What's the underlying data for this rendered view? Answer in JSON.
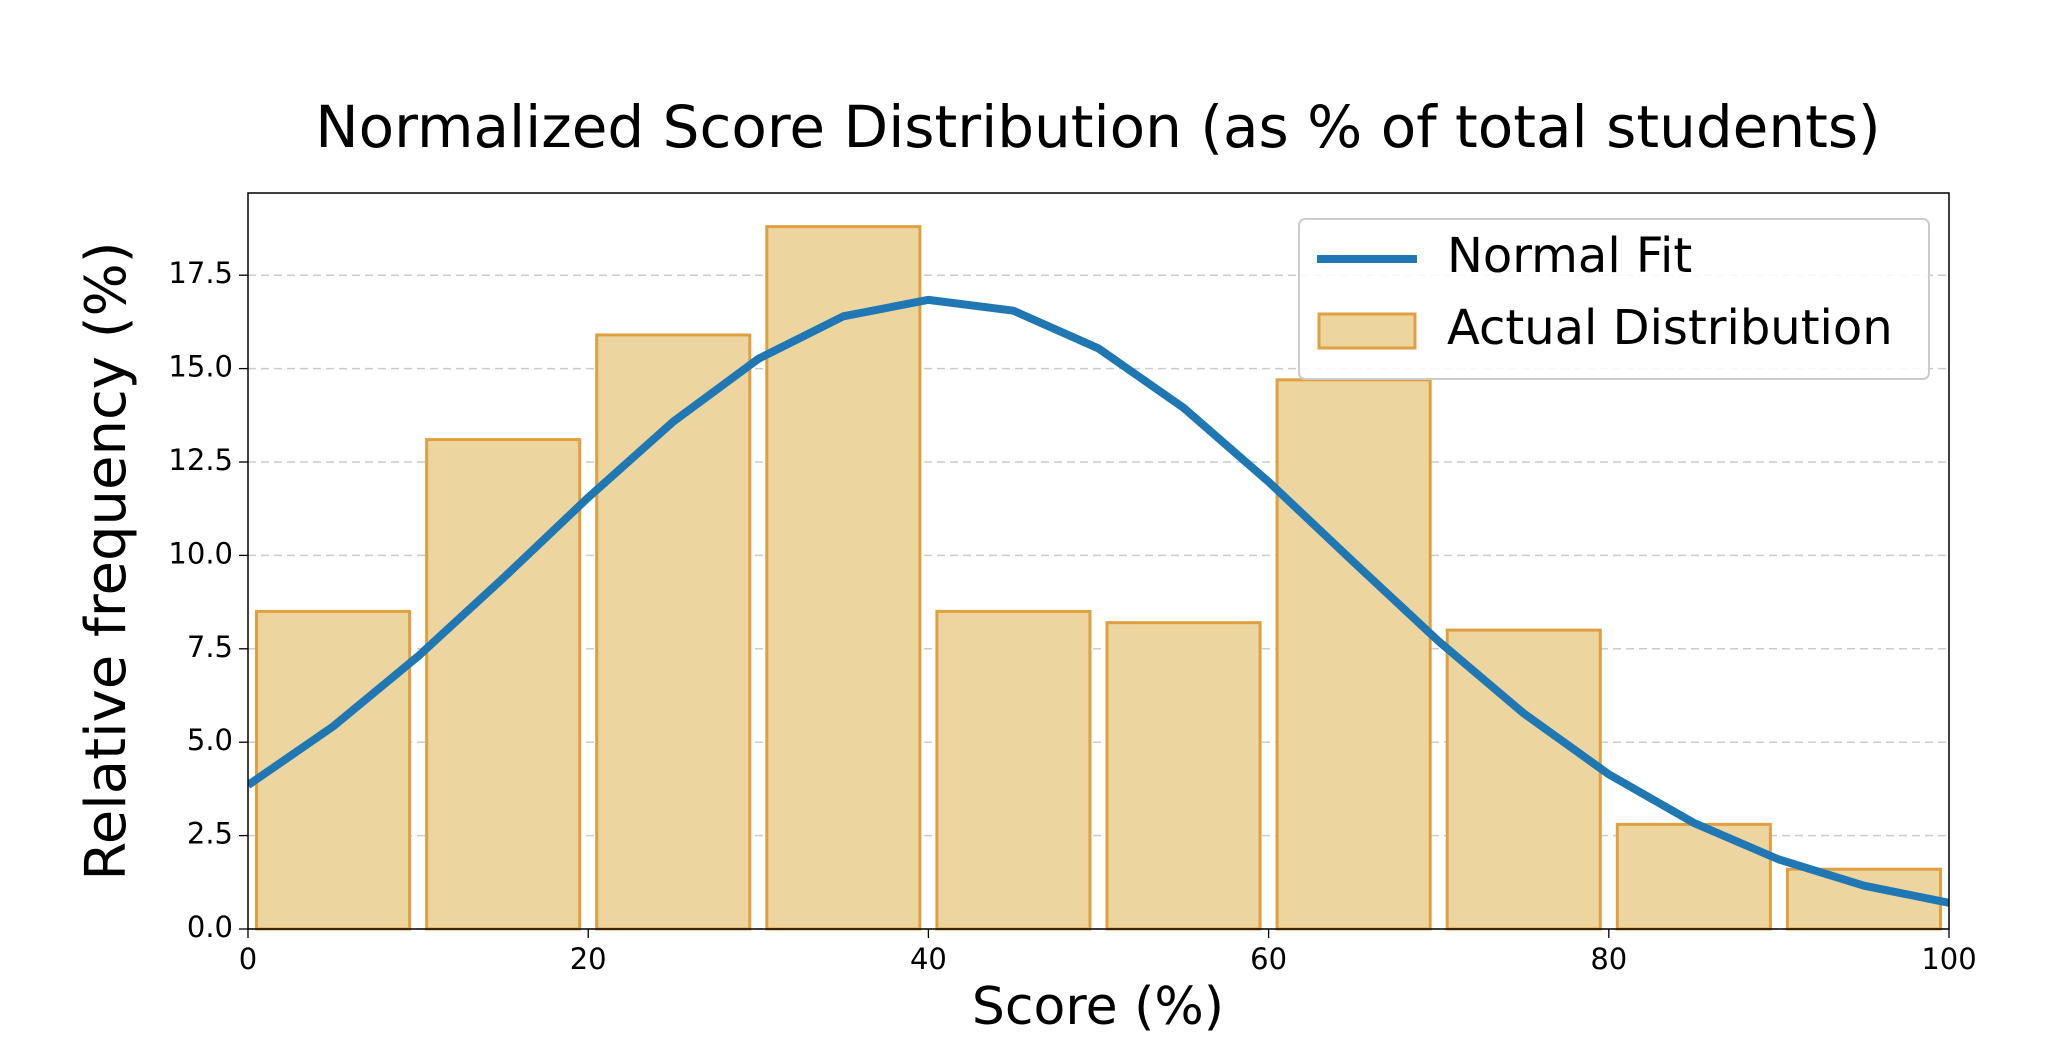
{
  "chart_data": {
    "type": "histogram",
    "title": "Normalized Score Distribution (as % of total students)",
    "x_label": "Score (%)",
    "y_label": "Relative frequency (%)",
    "bins": [
      0,
      10,
      20,
      30,
      40,
      50,
      60,
      70,
      80,
      90,
      100
    ],
    "series": [
      {
        "name": "Normal Fit",
        "type": "line",
        "color": "#1f77b4",
        "x": [
          0,
          5,
          10,
          15,
          20,
          25,
          30,
          35,
          40,
          45,
          50,
          55,
          60,
          65,
          70,
          75,
          80,
          85,
          90,
          95,
          100
        ],
        "values": [
          3.85,
          5.42,
          7.3,
          9.39,
          11.55,
          13.58,
          15.26,
          16.4,
          16.84,
          16.55,
          15.54,
          13.95,
          11.97,
          9.82,
          7.7,
          5.77,
          4.14,
          2.84,
          1.86,
          1.16,
          0.7
        ]
      },
      {
        "name": "Actual Distribution",
        "type": "histogram",
        "color": "#edd59f",
        "edgecolor": "#e0a040",
        "values": [
          8.5,
          13.1,
          15.9,
          18.8,
          8.5,
          8.2,
          14.7,
          8.0,
          2.8,
          1.6
        ]
      }
    ],
    "xlim": [
      0,
      100
    ],
    "xticks": [
      0,
      20,
      40,
      60,
      80,
      100
    ],
    "ylim": [
      0,
      19.7
    ],
    "yticks": [
      {
        "value": 0,
        "label": "0.0"
      },
      2.5,
      {
        "value": 5,
        "label": "5.0"
      },
      7.5,
      {
        "value": 10,
        "label": "10.0"
      },
      12.5,
      {
        "value": 15,
        "label": "15.0"
      },
      17.5
    ],
    "grid": true,
    "legend": "upper right"
  }
}
